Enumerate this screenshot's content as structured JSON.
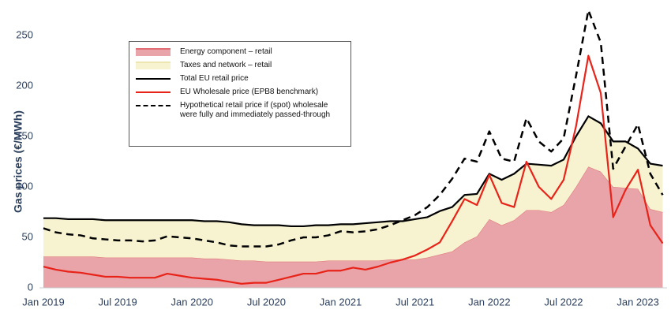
{
  "chart_data": {
    "type": "line",
    "ylabel": "Gas prices (€/MWh)",
    "categories": [
      "Jan 2019",
      null,
      null,
      null,
      null,
      null,
      "Jul 2019",
      null,
      null,
      null,
      null,
      null,
      "Jan 2020",
      null,
      null,
      null,
      null,
      null,
      "Jul 2020",
      null,
      null,
      null,
      null,
      null,
      "Jan 2021",
      null,
      null,
      null,
      null,
      null,
      "Jul 2021",
      null,
      null,
      null,
      null,
      null,
      "Jan 2022",
      null,
      null,
      null,
      null,
      null,
      "Jul 2022",
      null,
      null,
      null,
      null,
      null,
      "Jan 2023",
      null,
      null
    ],
    "ylim": [
      0,
      250
    ],
    "yticks": [
      0,
      50,
      100,
      150,
      200,
      250
    ],
    "series": [
      {
        "name": "Energy component – retail",
        "kind": "area",
        "color": "#e8a4a8",
        "edge": "#df6f75",
        "values": [
          31,
          31,
          31,
          31,
          31,
          30,
          30,
          30,
          30,
          30,
          30,
          30,
          30,
          29,
          29,
          28,
          27,
          27,
          26,
          26,
          26,
          26,
          26,
          27,
          27,
          27,
          27,
          27,
          28,
          28,
          28,
          30,
          33,
          36,
          45,
          51,
          68,
          62,
          67,
          77,
          77,
          75,
          82,
          100,
          120,
          115,
          100,
          99,
          98,
          78,
          75
        ]
      },
      {
        "name": "Taxes and network – retail",
        "kind": "area",
        "stacked": true,
        "color": "#f7f3d0",
        "edge": "#eee6b0",
        "values": [
          38,
          38,
          37,
          37,
          37,
          37,
          37,
          37,
          37,
          37,
          37,
          37,
          37,
          37,
          37,
          37,
          36,
          35,
          36,
          36,
          35,
          35,
          36,
          35,
          36,
          36,
          37,
          38,
          38,
          38,
          40,
          40,
          43,
          44,
          47,
          42,
          45,
          45,
          46,
          46,
          45,
          46,
          45,
          50,
          50,
          48,
          45,
          46,
          40,
          45,
          46
        ]
      },
      {
        "name": "Total EU retail price",
        "kind": "line",
        "color": "#000000",
        "values": [
          69,
          69,
          68,
          68,
          68,
          67,
          67,
          67,
          67,
          67,
          67,
          67,
          67,
          66,
          66,
          65,
          63,
          62,
          62,
          62,
          61,
          61,
          62,
          62,
          63,
          63,
          64,
          65,
          66,
          66,
          68,
          70,
          76,
          80,
          92,
          93,
          113,
          107,
          113,
          123,
          122,
          121,
          127,
          150,
          170,
          163,
          145,
          145,
          138,
          123,
          121
        ]
      },
      {
        "name": "EU Wholesale price (EPB8 benchmark)",
        "kind": "line",
        "color": "#e8231a",
        "values": [
          21,
          18,
          16,
          15,
          13,
          11,
          11,
          10,
          10,
          10,
          14,
          12,
          10,
          9,
          8,
          6,
          4,
          5,
          5,
          8,
          11,
          14,
          14,
          17,
          17,
          20,
          18,
          21,
          25,
          28,
          32,
          38,
          45,
          66,
          88,
          82,
          112,
          84,
          80,
          125,
          100,
          88,
          107,
          160,
          230,
          193,
          70,
          97,
          117,
          62,
          44
        ]
      },
      {
        "name": "Hypothetical retail price if (spot) wholesale were fully and immediately passed-through",
        "kind": "line",
        "dashed": true,
        "color": "#000000",
        "values": [
          59,
          55,
          53,
          52,
          49,
          48,
          47,
          47,
          46,
          47,
          51,
          50,
          49,
          47,
          45,
          42,
          41,
          41,
          41,
          43,
          47,
          50,
          50,
          52,
          56,
          55,
          56,
          58,
          62,
          67,
          72,
          80,
          92,
          108,
          128,
          125,
          155,
          128,
          125,
          168,
          145,
          135,
          148,
          210,
          275,
          243,
          118,
          140,
          162,
          113,
          92
        ]
      }
    ]
  }
}
